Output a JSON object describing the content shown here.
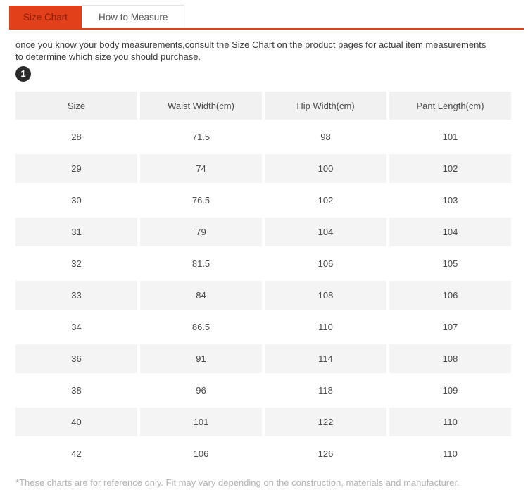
{
  "colors": {
    "accent": "#e2401b",
    "active_tab_text": "#8a1c05",
    "inactive_tab_text": "#555555",
    "body_text": "#3b3b3b",
    "table_text": "#4a4a4a",
    "header_bg": "#f1f1f1",
    "row_alt_bg": "#f4f4f4",
    "footnote_text": "#b2b2b2",
    "badge_bg": "#2b2b2b"
  },
  "tabs": {
    "size_chart": "Size Chart",
    "how_to_measure": "How to Measure"
  },
  "intro": {
    "text": "once you know your body measurements,consult the Size Chart on the product pages for actual item measurements to determine which size you should purchase.",
    "badge": "1"
  },
  "table": {
    "headers": [
      "Size",
      "Waist Width(cm)",
      "Hip Width(cm)",
      "Pant Length(cm)"
    ],
    "rows": [
      [
        "28",
        "71.5",
        "98",
        "101"
      ],
      [
        "29",
        "74",
        "100",
        "102"
      ],
      [
        "30",
        "76.5",
        "102",
        "103"
      ],
      [
        "31",
        "79",
        "104",
        "104"
      ],
      [
        "32",
        "81.5",
        "106",
        "105"
      ],
      [
        "33",
        "84",
        "108",
        "106"
      ],
      [
        "34",
        "86.5",
        "110",
        "107"
      ],
      [
        "36",
        "91",
        "114",
        "108"
      ],
      [
        "38",
        "96",
        "118",
        "109"
      ],
      [
        "40",
        "101",
        "122",
        "110"
      ],
      [
        "42",
        "106",
        "126",
        "110"
      ]
    ]
  },
  "footnote": "*These charts are for reference only. Fit may vary depending on the construction, materials and manufacturer."
}
